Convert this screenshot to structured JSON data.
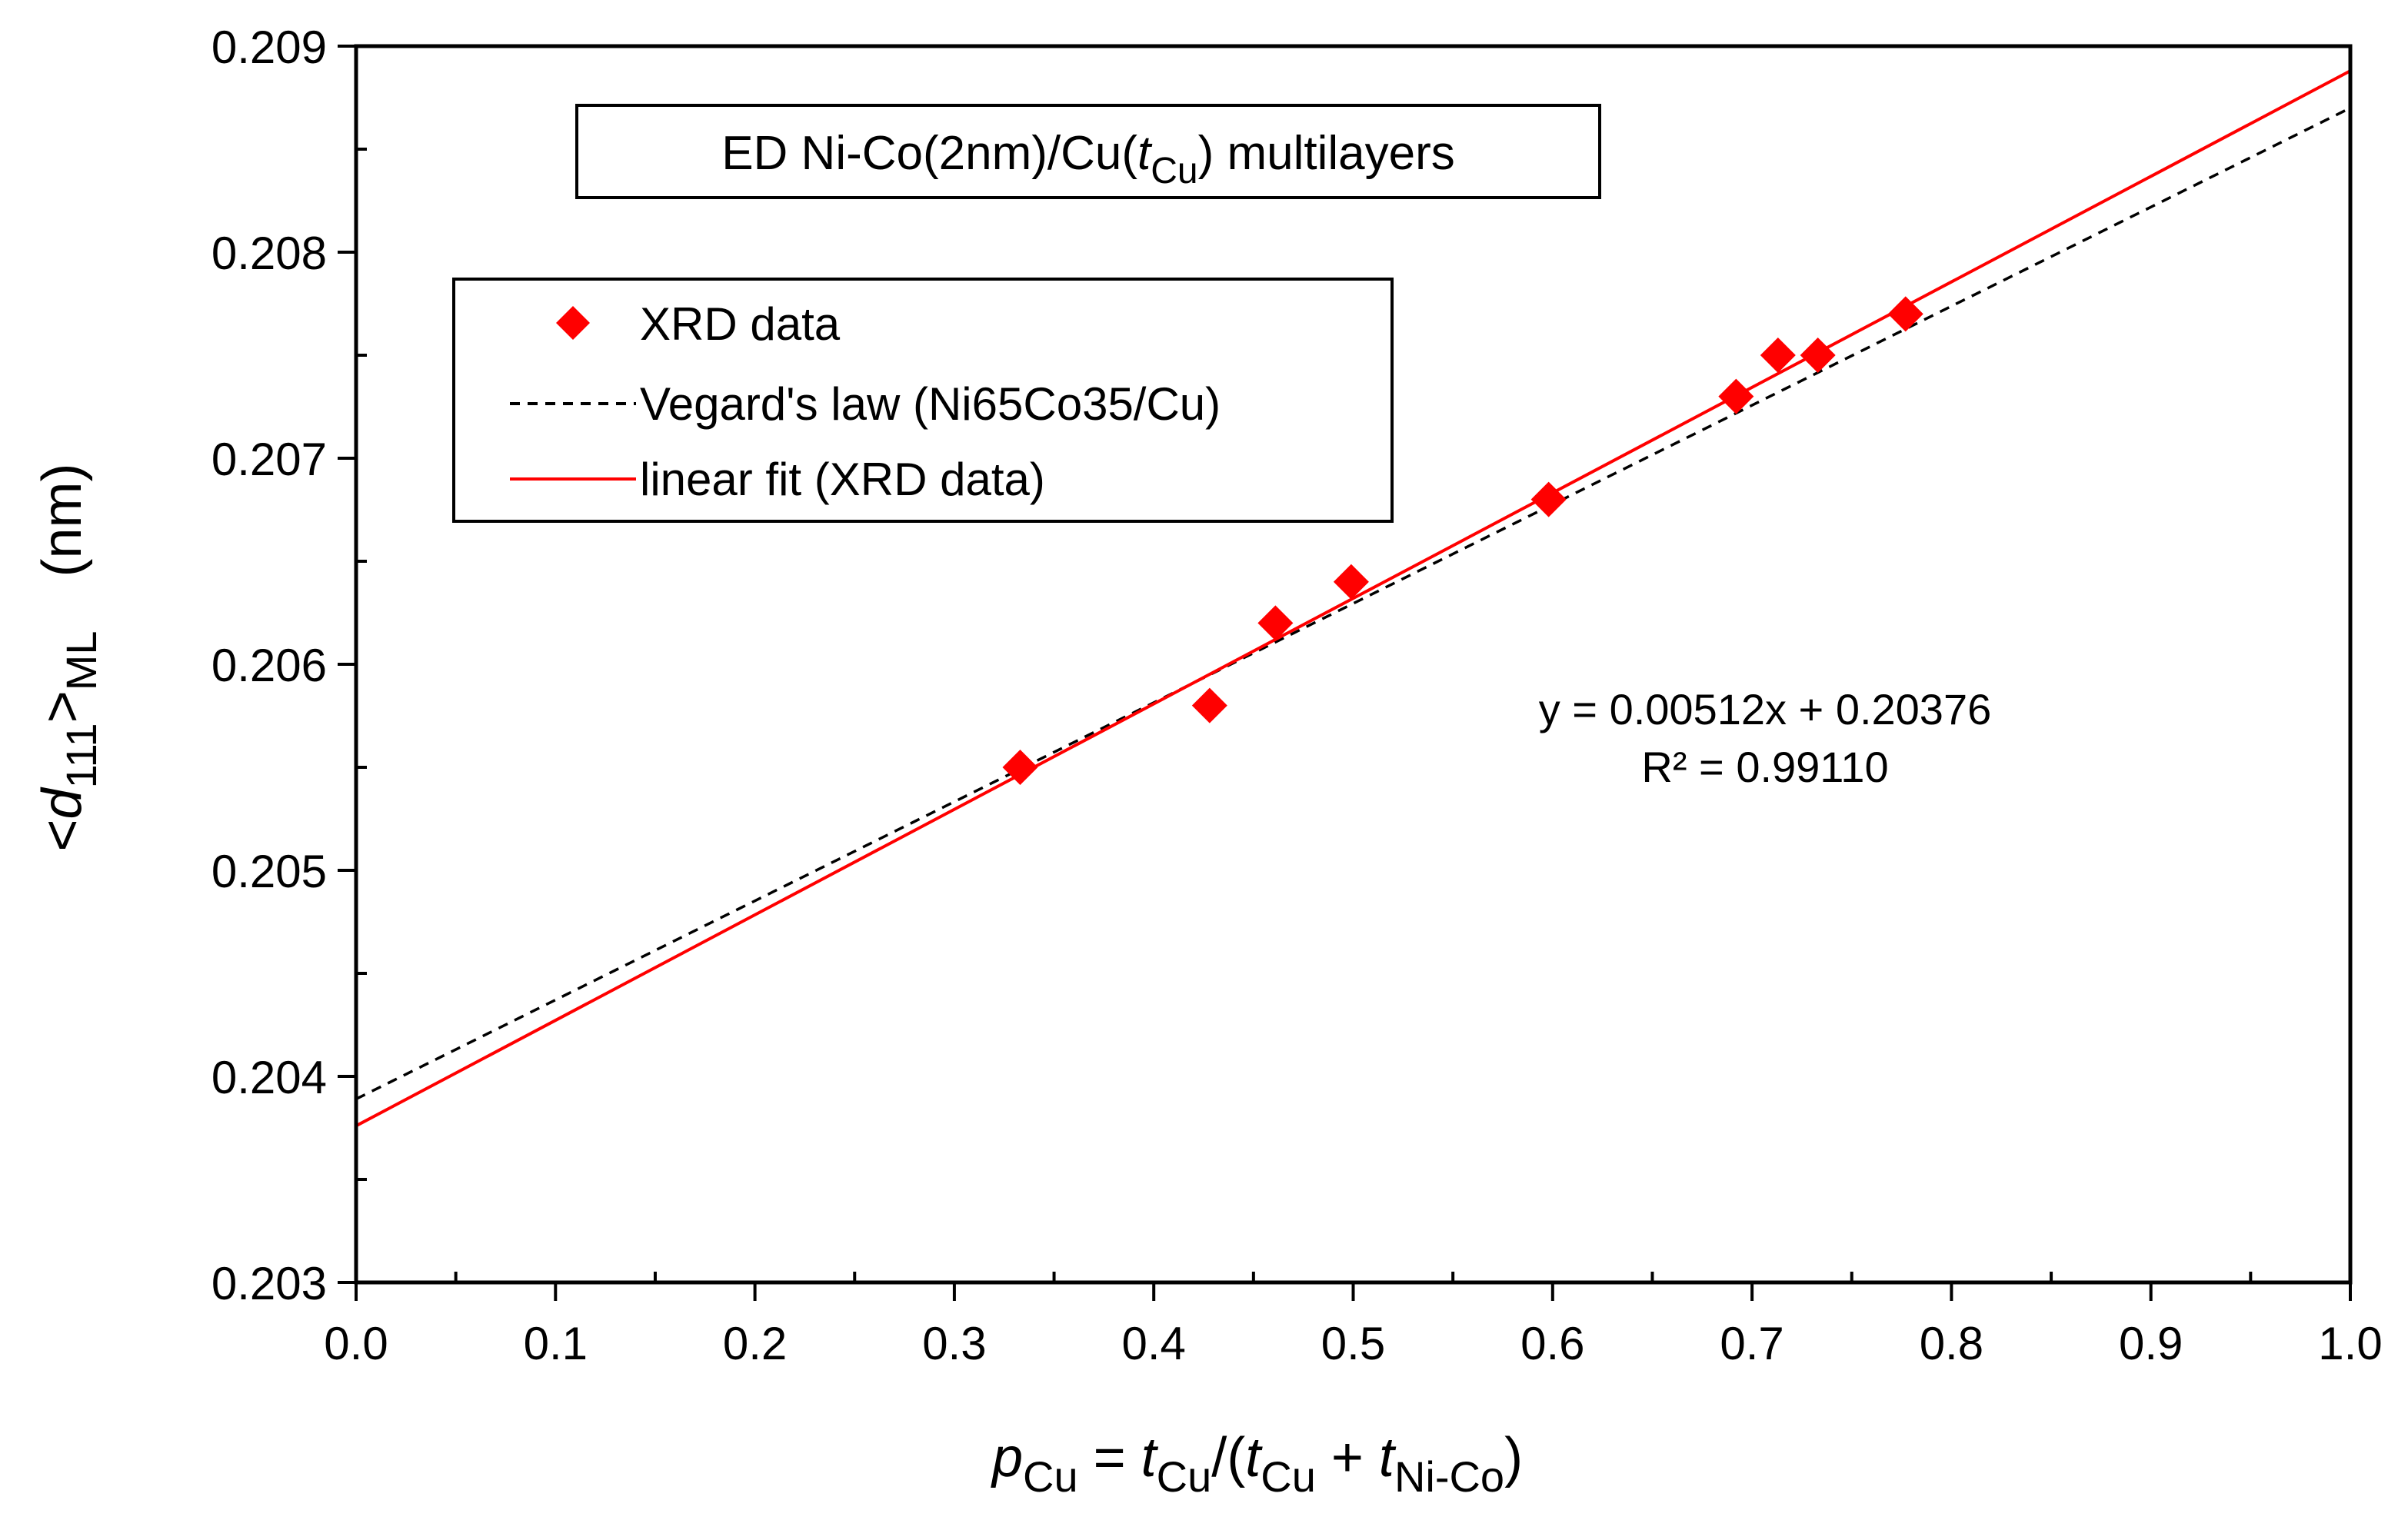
{
  "chart_data": {
    "type": "scatter",
    "title_box": {
      "prefix": "ED Ni-Co(2nm)/Cu(",
      "italic": "t",
      "sub": "Cu",
      "suffix": ") multilayers"
    },
    "xlabel": {
      "p": "p",
      "p_sub": "Cu",
      "eq": " = ",
      "t1": "t",
      "t1_sub": "Cu",
      "mid": "/(",
      "t2": "t",
      "t2_sub": "Cu",
      "plus": " + ",
      "t3": "t",
      "t3_sub": "Ni-Co",
      "end": ")"
    },
    "ylabel": {
      "lt": "<",
      "d": "d",
      "d_sub": "111",
      "gt": ">",
      "ml_sub": "ML",
      "unit": "(nm)"
    },
    "xlim": [
      0.0,
      1.0
    ],
    "ylim": [
      0.203,
      0.209
    ],
    "x_ticks": [
      "0.0",
      "0.1",
      "0.2",
      "0.3",
      "0.4",
      "0.5",
      "0.6",
      "0.7",
      "0.8",
      "0.9",
      "1.0"
    ],
    "y_ticks": [
      "0.203",
      "0.204",
      "0.205",
      "0.206",
      "0.207",
      "0.208",
      "0.209"
    ],
    "legend": {
      "position": "upper-left",
      "entries": [
        "XRD data",
        "Vegard's law (Ni65Co35/Cu)",
        "linear fit (XRD data)"
      ]
    },
    "series": [
      {
        "name": "XRD data",
        "kind": "points",
        "marker": "diamond",
        "color": "#ff0000",
        "x": [
          0.333,
          0.428,
          0.461,
          0.499,
          0.598,
          0.692,
          0.713,
          0.733,
          0.777
        ],
        "y": [
          0.2055,
          0.2058,
          0.2062,
          0.2064,
          0.2068,
          0.2073,
          0.2075,
          0.2075,
          0.2077
        ]
      },
      {
        "name": "Vegard's law (Ni65Co35/Cu)",
        "kind": "line",
        "style": "dashed",
        "color": "#000000",
        "x": [
          0.0,
          1.0
        ],
        "y": [
          0.20389,
          0.2087
        ]
      },
      {
        "name": "linear fit (XRD data)",
        "kind": "line",
        "style": "solid",
        "color": "#ff0000",
        "x": [
          0.0,
          1.0
        ],
        "y": [
          0.20376,
          0.20888
        ]
      }
    ],
    "annotation": {
      "equation": "y = 0.00512x + 0.20376",
      "r2": "R² = 0.99110"
    }
  }
}
